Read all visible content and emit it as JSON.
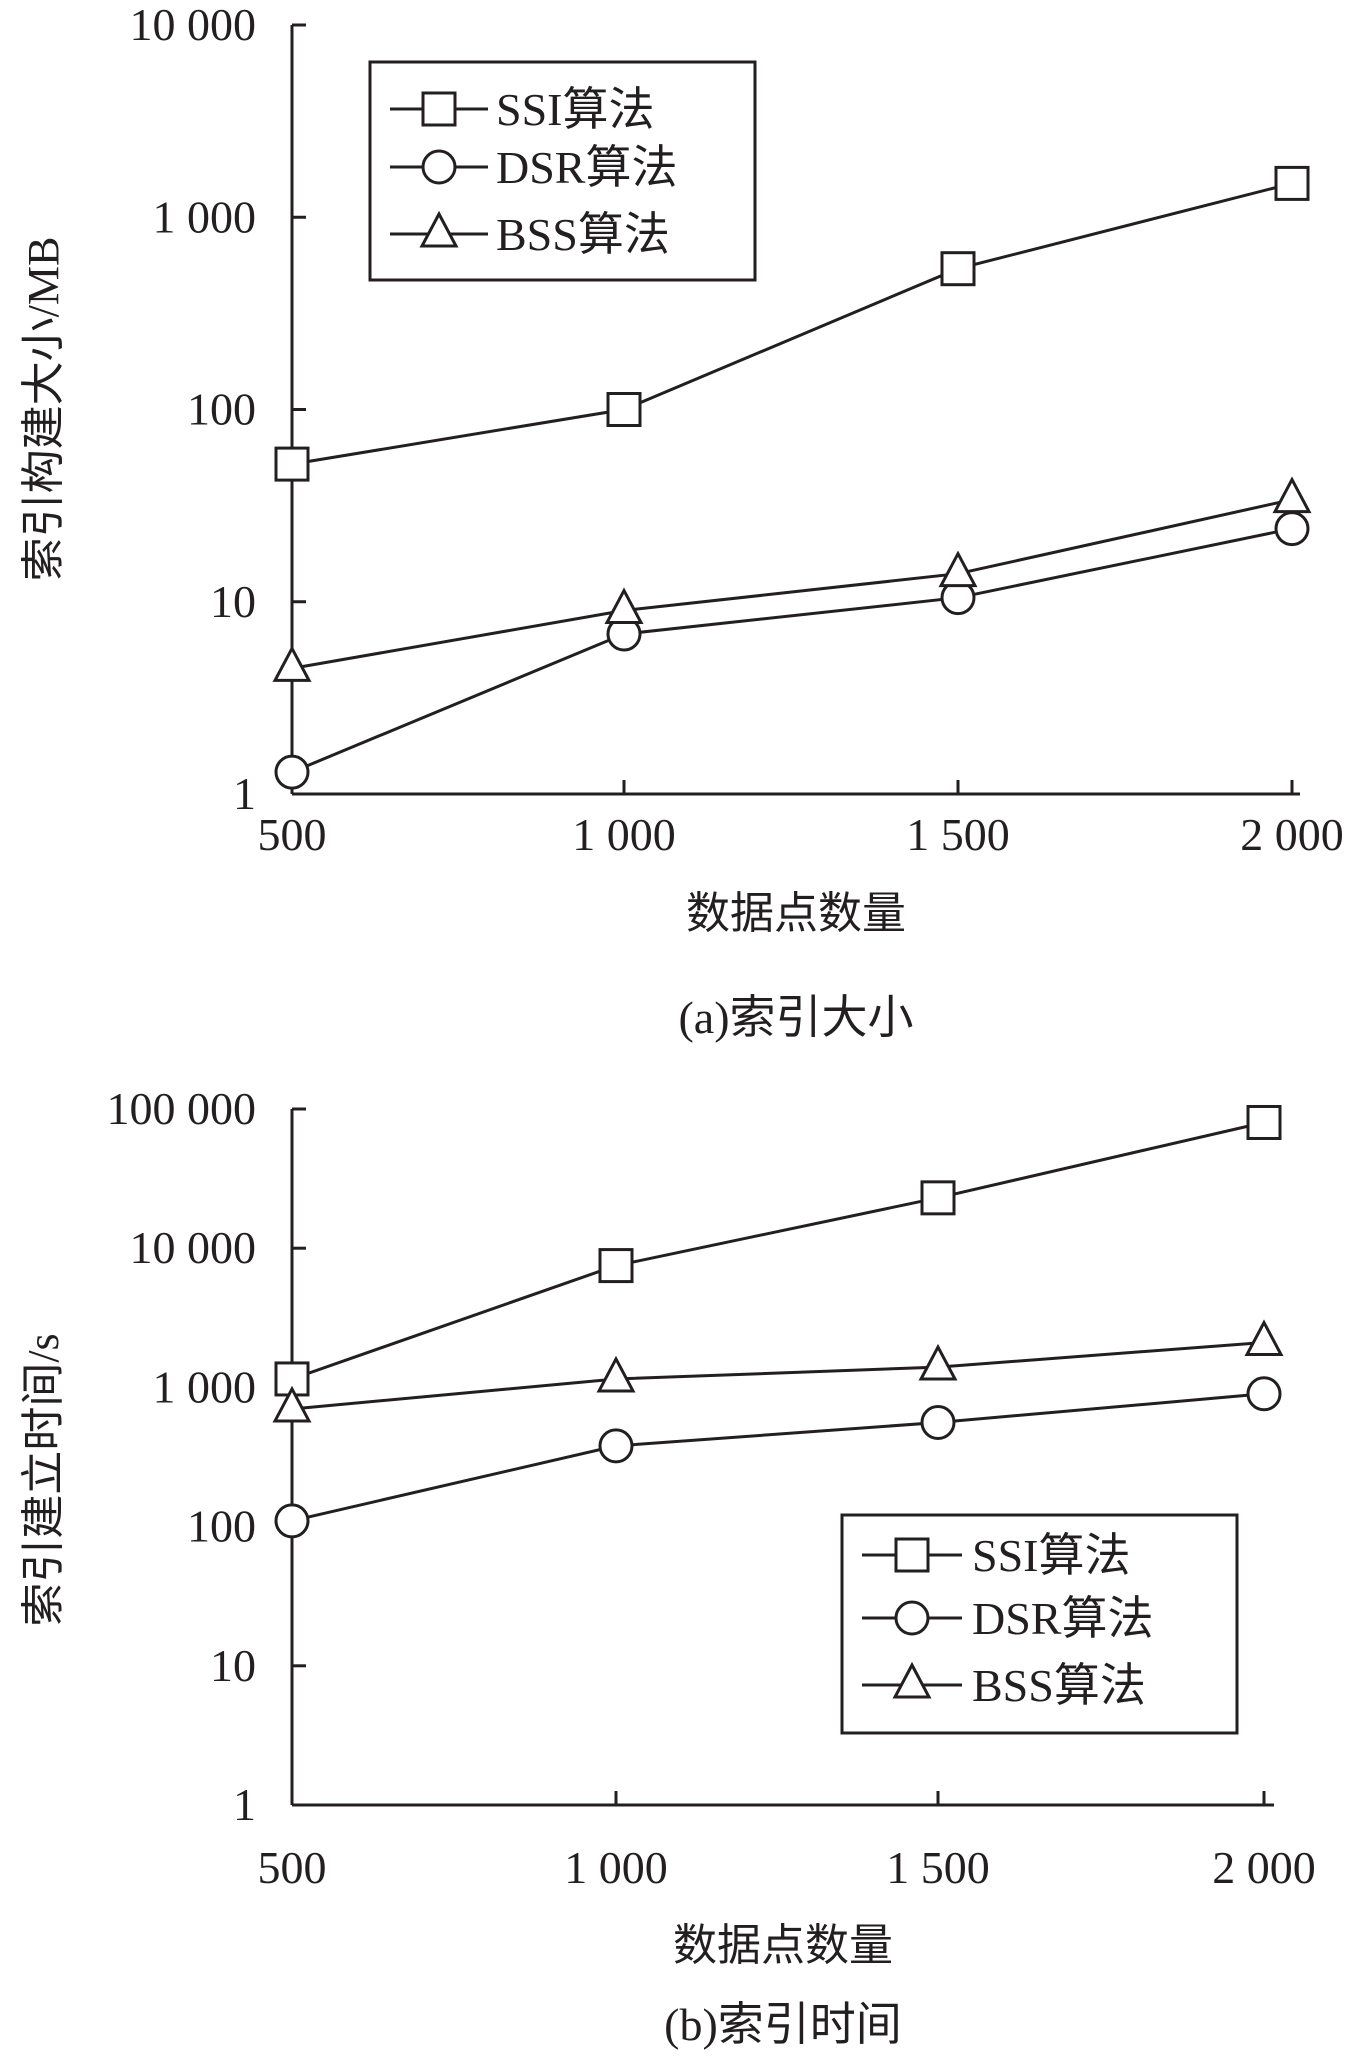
{
  "chart_data": [
    {
      "type": "line",
      "title": "(a)索引大小",
      "xlabel": "数据点数量",
      "ylabel": "索引构建大小/MB",
      "yscale": "log",
      "x": [
        500,
        1000,
        1500,
        2000
      ],
      "xticks": [
        "500",
        "1 000",
        "1 500",
        "2 000"
      ],
      "ylim": [
        1,
        10000
      ],
      "yticks": [
        "1",
        "10",
        "100",
        "1 000",
        "10 000"
      ],
      "legend_position": "top-left",
      "series": [
        {
          "name": "SSI算法",
          "marker": "square",
          "values": [
            52,
            100,
            540,
            1500
          ]
        },
        {
          "name": "DSR算法",
          "marker": "circle",
          "values": [
            1.3,
            6.8,
            10.5,
            24
          ]
        },
        {
          "name": "BSS算法",
          "marker": "triangle",
          "values": [
            4.5,
            9,
            14,
            34
          ]
        }
      ]
    },
    {
      "type": "line",
      "title": "(b)索引时间",
      "xlabel": "数据点数量",
      "ylabel": "索引建立时间/s",
      "yscale": "log",
      "x": [
        500,
        1000,
        1500,
        2000
      ],
      "xticks": [
        "500",
        "1 000",
        "1 500",
        "2 000"
      ],
      "ylim": [
        1,
        100000
      ],
      "yticks": [
        "1",
        "10",
        "100",
        "1 000",
        "10 000",
        "100 000"
      ],
      "legend_position": "bottom-right",
      "series": [
        {
          "name": "SSI算法",
          "marker": "square",
          "values": [
            1150,
            7500,
            23000,
            80000
          ]
        },
        {
          "name": "DSR算法",
          "marker": "circle",
          "values": [
            110,
            380,
            560,
            900
          ]
        },
        {
          "name": "BSS算法",
          "marker": "triangle",
          "values": [
            700,
            1150,
            1400,
            2100
          ]
        }
      ]
    }
  ]
}
